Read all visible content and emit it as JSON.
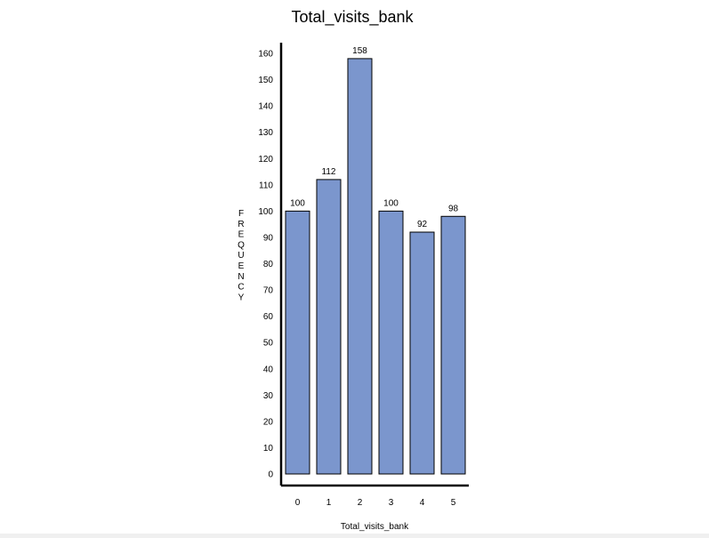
{
  "chart_data": {
    "type": "bar",
    "title": "Total_visits_bank",
    "xlabel": "Total_visits_bank",
    "ylabel": "FREQUENCY",
    "categories": [
      "0",
      "1",
      "2",
      "3",
      "4",
      "5"
    ],
    "values": [
      100,
      112,
      158,
      100,
      92,
      98
    ],
    "data_labels": [
      "100",
      "112",
      "158",
      "100",
      "92",
      "98"
    ],
    "ylim": [
      0,
      160
    ],
    "yticks": [
      0,
      10,
      20,
      30,
      40,
      50,
      60,
      70,
      80,
      90,
      100,
      110,
      120,
      130,
      140,
      150,
      160
    ],
    "grid": false,
    "legend": "none",
    "bar_color": "#7b96cd",
    "bar_edge_color": "#000000"
  }
}
